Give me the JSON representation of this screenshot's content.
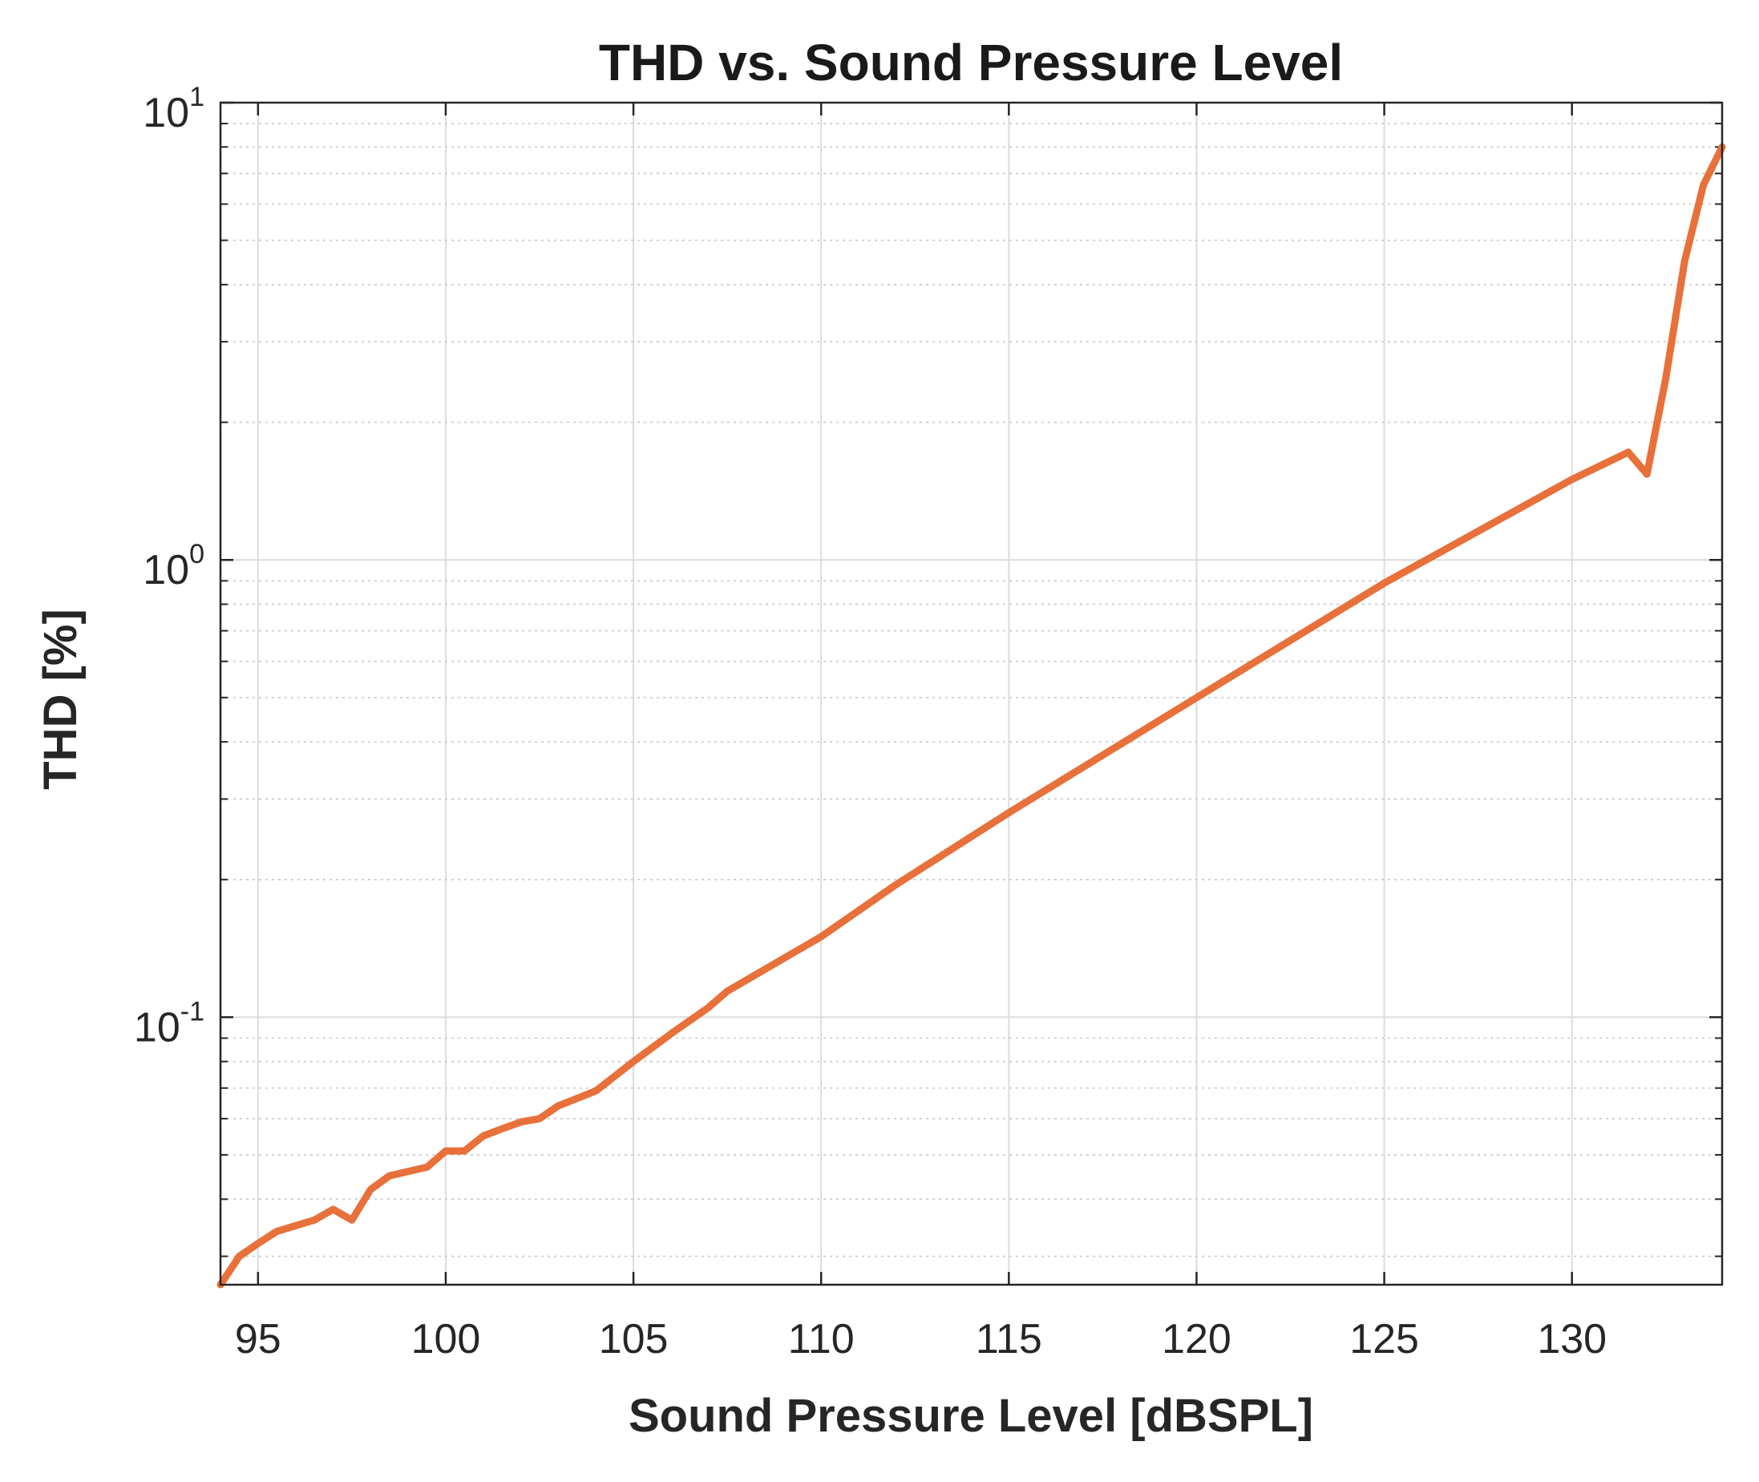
{
  "chart_data": {
    "type": "line",
    "title": "THD vs. Sound Pressure Level",
    "xlabel": "Sound Pressure Level [dBSPL]",
    "ylabel": "THD [%]",
    "xlim": [
      94,
      134
    ],
    "ylim": [
      0.026,
      10
    ],
    "yscale": "log",
    "grid": true,
    "x_ticks": [
      95,
      100,
      105,
      110,
      115,
      120,
      125,
      130
    ],
    "x_tick_labels": [
      "95",
      "100",
      "105",
      "110",
      "115",
      "120",
      "125",
      "130"
    ],
    "y_ticks": [
      {
        "value": 0.1,
        "base": "10",
        "exp": "-1"
      },
      {
        "value": 1,
        "base": "10",
        "exp": "0"
      },
      {
        "value": 10,
        "base": "10",
        "exp": "1"
      }
    ],
    "series": [
      {
        "name": "THD",
        "color": "#e8703a",
        "x": [
          94,
          94.5,
          95,
          95.5,
          96,
          96.5,
          97,
          97.5,
          98,
          98.5,
          99,
          99.5,
          100,
          100.5,
          101,
          101.5,
          102,
          102.5,
          103,
          104,
          105,
          106,
          107,
          107.5,
          110,
          112,
          115,
          120,
          125,
          130,
          131.5,
          132,
          132.5,
          133,
          133.5,
          134
        ],
        "values": [
          0.026,
          0.03,
          0.032,
          0.034,
          0.035,
          0.036,
          0.038,
          0.036,
          0.042,
          0.045,
          0.046,
          0.047,
          0.051,
          0.051,
          0.055,
          0.057,
          0.059,
          0.06,
          0.064,
          0.069,
          0.08,
          0.092,
          0.105,
          0.114,
          0.15,
          0.195,
          0.28,
          0.5,
          0.89,
          1.5,
          1.72,
          1.54,
          2.5,
          4.5,
          6.6,
          8.0
        ]
      }
    ]
  }
}
